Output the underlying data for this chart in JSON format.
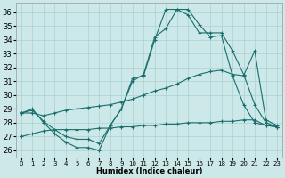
{
  "xlabel": "Humidex (Indice chaleur)",
  "bg_color": "#cce8e8",
  "grid_color": "#aad0d0",
  "line_color": "#1a6e6e",
  "xlim": [
    -0.5,
    23.5
  ],
  "ylim": [
    25.5,
    36.7
  ],
  "yticks": [
    26,
    27,
    28,
    29,
    30,
    31,
    32,
    33,
    34,
    35,
    36
  ],
  "xticks": [
    0,
    1,
    2,
    3,
    4,
    5,
    6,
    7,
    8,
    9,
    10,
    11,
    12,
    13,
    14,
    15,
    16,
    17,
    18,
    19,
    20,
    21,
    22,
    23
  ],
  "series": [
    [
      28.7,
      29.0,
      28.0,
      27.2,
      26.6,
      26.2,
      26.2,
      26.0,
      27.8,
      29.0,
      31.0,
      31.5,
      34.2,
      34.8,
      36.2,
      36.2,
      35.1,
      34.2,
      34.3,
      31.4,
      29.3,
      28.0,
      27.8,
      27.7
    ],
    [
      28.7,
      28.9,
      28.1,
      27.5,
      27.0,
      26.8,
      26.8,
      26.5,
      27.8,
      29.0,
      31.2,
      31.4,
      34.0,
      36.2,
      36.2,
      35.8,
      34.5,
      34.5,
      34.5,
      33.2,
      31.5,
      29.3,
      28.0,
      27.7
    ],
    [
      28.7,
      28.7,
      28.5,
      28.7,
      28.9,
      29.0,
      29.1,
      29.2,
      29.3,
      29.5,
      29.7,
      30.0,
      30.3,
      30.5,
      30.8,
      31.2,
      31.5,
      31.7,
      31.8,
      31.5,
      31.4,
      33.2,
      28.2,
      27.8
    ],
    [
      27.0,
      27.2,
      27.4,
      27.5,
      27.5,
      27.5,
      27.5,
      27.6,
      27.6,
      27.7,
      27.7,
      27.8,
      27.8,
      27.9,
      27.9,
      28.0,
      28.0,
      28.0,
      28.1,
      28.1,
      28.2,
      28.2,
      27.8,
      27.7
    ]
  ]
}
